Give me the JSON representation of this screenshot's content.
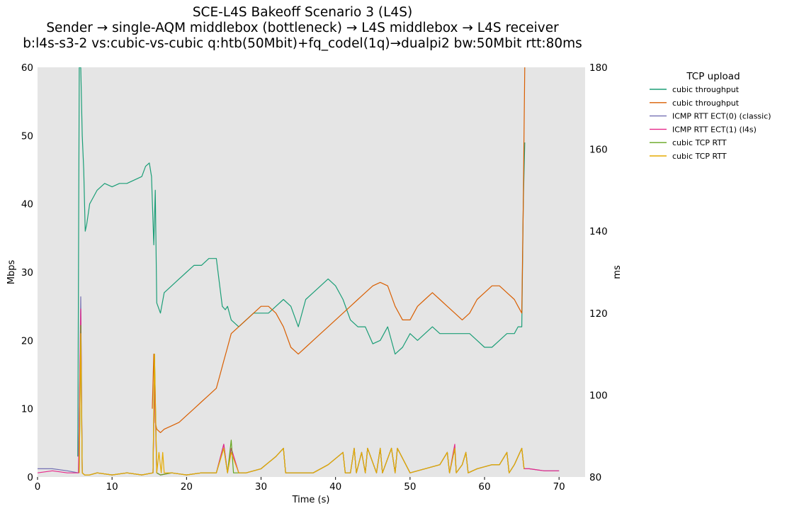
{
  "chart_data": {
    "type": "line",
    "title": "SCE-L4S Bakeoff Scenario 3 (L4S)",
    "subtitle": "Sender → single-AQM middlebox (bottleneck) → L4S middlebox → L4S receiver",
    "subtitle2": "b:l4s-s3-2 vs:cubic-vs-cubic q:htb(50Mbit)+fq_codel(1q)→dualpi2 bw:50Mbit rtt:80ms",
    "xlabel": "Time (s)",
    "ylabel": "Mbps",
    "y2label": "ms",
    "xlim": [
      0,
      73.5
    ],
    "ylim": [
      0,
      60
    ],
    "y2lim": [
      80,
      180
    ],
    "xticks": [
      0,
      10,
      20,
      30,
      40,
      50,
      60,
      70
    ],
    "yticks": [
      0,
      10,
      20,
      30,
      40,
      50,
      60
    ],
    "y2ticks": [
      80,
      100,
      120,
      140,
      160,
      180
    ],
    "grid": false,
    "background": "#e5e5e5",
    "legend": {
      "title": "TCP upload",
      "placement": "outside-top-right"
    },
    "series": [
      {
        "name": "cubic throughput",
        "axis": "left",
        "color": "#1b9e77",
        "x": [
          5.4,
          5.6,
          5.8,
          6.0,
          6.2,
          6.4,
          6.6,
          7.0,
          7.5,
          8.0,
          9.0,
          10.0,
          11.0,
          12.0,
          13.0,
          14.0,
          14.5,
          15.0,
          15.3,
          15.6,
          15.8,
          16.0,
          16.5,
          17.0,
          18.0,
          19.0,
          20.0,
          21.0,
          22.0,
          23.0,
          24.0,
          24.8,
          25.2,
          25.5,
          26.0,
          27.0,
          28.0,
          29.0,
          30.0,
          31.0,
          32.0,
          33.0,
          34.0,
          35.0,
          36.0,
          37.0,
          38.0,
          39.0,
          40.0,
          41.0,
          42.0,
          43.0,
          44.0,
          45.0,
          46.0,
          47.0,
          48.0,
          49.0,
          50.0,
          51.0,
          52.0,
          53.0,
          54.0,
          55.0,
          56.0,
          57.0,
          58.0,
          59.0,
          60.0,
          61.0,
          62.0,
          63.0,
          64.0,
          64.5,
          65.0,
          65.2,
          65.4
        ],
        "y": [
          3,
          60,
          60,
          50,
          45,
          36,
          37,
          40,
          41,
          42,
          43,
          42.5,
          43,
          43,
          43.5,
          44,
          45.5,
          46,
          44,
          34,
          42,
          25.5,
          24,
          27,
          28,
          29,
          30,
          31,
          31,
          32,
          32,
          25,
          24.5,
          25,
          23,
          22,
          23,
          24,
          24,
          24,
          25,
          26,
          25,
          22,
          26,
          27,
          28,
          29,
          28,
          26,
          23,
          22,
          22,
          19.5,
          20,
          22,
          18,
          19,
          21,
          20,
          21,
          22,
          21,
          21,
          21,
          21,
          21,
          20,
          19,
          19,
          20,
          21,
          21,
          22,
          22,
          40,
          49
        ]
      },
      {
        "name": "cubic throughput",
        "axis": "left",
        "color": "#d95f02",
        "x": [
          15.4,
          15.6,
          15.8,
          16.0,
          16.5,
          17.0,
          18.0,
          19.0,
          20.0,
          21.0,
          22.0,
          23.0,
          24.0,
          24.5,
          25.0,
          25.5,
          26.0,
          27.0,
          28.0,
          29.0,
          30.0,
          31.0,
          32.0,
          33.0,
          34.0,
          35.0,
          36.0,
          37.0,
          38.0,
          39.0,
          40.0,
          41.0,
          42.0,
          43.0,
          44.0,
          45.0,
          46.0,
          47.0,
          48.0,
          49.0,
          50.0,
          51.0,
          52.0,
          53.0,
          54.0,
          55.0,
          56.0,
          57.0,
          58.0,
          59.0,
          60.0,
          61.0,
          62.0,
          63.0,
          64.0,
          64.5,
          65.0,
          65.2,
          65.4
        ],
        "y": [
          10,
          18,
          8,
          7,
          6.5,
          7,
          7.5,
          8,
          9,
          10,
          11,
          12,
          13,
          15,
          17,
          19,
          21,
          22,
          23,
          24,
          25,
          25,
          24,
          22,
          19,
          18,
          19,
          20,
          21,
          22,
          23,
          24,
          25,
          26,
          27,
          28,
          28.5,
          28,
          25,
          23,
          23,
          25,
          26,
          27,
          26,
          25,
          24,
          23,
          24,
          26,
          27,
          28,
          28,
          27,
          26,
          25,
          24,
          40,
          60
        ]
      },
      {
        "name": "ICMP RTT ECT(0) (classic)",
        "axis": "right",
        "color": "#7570b3",
        "x": [
          0,
          2,
          4,
          5.5,
          5.8,
          6.0,
          6.3,
          7,
          8,
          10,
          12,
          14,
          15.5,
          15.7,
          16.0,
          16.5,
          18,
          20,
          22,
          24,
          25,
          25.5,
          26,
          27,
          28,
          30,
          32,
          33,
          33.3,
          35,
          37,
          39,
          41,
          41.3,
          42,
          42.5,
          42.8,
          43.5,
          44,
          44.3,
          45.5,
          46,
          46.3,
          47.5,
          48,
          48.3,
          50,
          52,
          54,
          55,
          55.3,
          56,
          56.2,
          57,
          57.5,
          57.8,
          59,
          61,
          62,
          63,
          63.3,
          64,
          65,
          65.3,
          66,
          68,
          70
        ],
        "y": [
          82,
          82,
          81.5,
          81,
          124,
          81,
          80.5,
          80.5,
          81,
          80.5,
          81,
          80.5,
          81,
          107,
          81,
          80.5,
          81,
          80.5,
          81,
          81,
          88,
          81,
          87,
          81,
          81,
          82,
          85,
          87,
          81,
          81,
          81,
          83,
          86,
          81,
          81,
          87,
          81,
          86,
          81,
          87,
          81,
          87,
          81,
          87,
          81,
          87,
          81,
          82,
          83,
          86,
          81,
          87,
          81,
          83,
          86,
          81,
          82,
          83,
          83,
          86,
          81,
          83,
          87,
          82,
          82,
          81.5,
          81.5
        ]
      },
      {
        "name": "ICMP RTT ECT(1) (l4s)",
        "axis": "right",
        "color": "#e7298a",
        "x": [
          0,
          2,
          4,
          5.5,
          5.8,
          6.0,
          6.3,
          7,
          8,
          10,
          12,
          14,
          15.5,
          15.7,
          16.0,
          16.5,
          18,
          20,
          22,
          24,
          25,
          25.5,
          26,
          27,
          28,
          30,
          32,
          33,
          33.3,
          35,
          37,
          39,
          41,
          41.3,
          42,
          42.5,
          42.8,
          43.5,
          44,
          44.3,
          45.5,
          46,
          46.3,
          47.5,
          48,
          48.3,
          50,
          52,
          54,
          55,
          55.3,
          56,
          56.2,
          57,
          57.5,
          57.8,
          59,
          61,
          62,
          63,
          63.3,
          64,
          65,
          65.3,
          66,
          68,
          70
        ],
        "y": [
          81,
          81.5,
          81,
          81,
          121,
          81,
          80.5,
          80.5,
          81,
          80.5,
          81,
          80.5,
          81,
          104,
          81,
          80.5,
          81,
          80.5,
          81,
          81,
          88,
          81,
          87,
          81,
          81,
          82,
          85,
          87,
          81,
          81,
          81,
          83,
          86,
          81,
          81,
          87,
          81,
          86,
          81,
          87,
          81,
          87,
          81,
          87,
          81,
          87,
          81,
          82,
          83,
          86,
          81,
          88,
          81,
          83,
          86,
          81,
          82,
          83,
          83,
          86,
          81,
          83,
          87,
          82,
          82,
          81.5,
          81.5
        ]
      },
      {
        "name": "cubic TCP RTT",
        "axis": "right",
        "color": "#66a61e",
        "x": [
          5.6,
          5.8,
          6.0,
          6.3,
          7,
          8,
          10,
          12,
          14,
          15.5,
          15.7,
          16.0,
          16.5,
          18,
          20,
          22,
          24,
          25,
          25.5,
          26,
          26.3,
          27,
          28,
          30,
          32,
          33,
          33.3,
          35,
          37,
          39,
          41,
          41.3,
          42,
          42.5,
          42.8,
          43.5,
          44,
          44.3,
          45.5,
          46,
          46.3,
          47.5,
          48,
          48.3,
          50,
          52,
          54,
          55,
          55.3,
          56,
          56.2,
          57,
          57.5,
          57.8,
          59,
          61,
          62,
          63,
          63.3,
          64,
          65,
          65.3
        ],
        "y": [
          81,
          117,
          81,
          80.5,
          80.5,
          81,
          80.5,
          81,
          80.5,
          81,
          110,
          81,
          80.5,
          81,
          80.5,
          81,
          81,
          87,
          81,
          89,
          81,
          81,
          81,
          82,
          85,
          87,
          81,
          81,
          81,
          83,
          86,
          81,
          81,
          87,
          81,
          86,
          81,
          87,
          81,
          87,
          81,
          87,
          81,
          87,
          81,
          82,
          83,
          86,
          81,
          87,
          81,
          83,
          86,
          81,
          82,
          83,
          83,
          86,
          81,
          83,
          87,
          82
        ]
      },
      {
        "name": "cubic TCP RTT",
        "axis": "right",
        "color": "#e6ab02",
        "x": [
          5.6,
          5.8,
          6.0,
          6.3,
          7,
          8,
          10,
          12,
          14,
          15.5,
          15.7,
          16.0,
          16.3,
          16.6,
          16.8,
          17.0,
          18,
          20,
          22,
          24,
          25,
          25.5,
          26,
          27,
          28,
          30,
          32,
          33,
          33.3,
          35,
          37,
          39,
          41,
          41.3,
          42,
          42.5,
          42.8,
          43.5,
          44,
          44.3,
          45.5,
          46,
          46.3,
          47.5,
          48,
          48.3,
          50,
          52,
          54,
          55,
          55.3,
          56,
          56.2,
          57,
          57.5,
          57.8,
          59,
          61,
          62,
          63,
          63.3,
          64,
          65,
          65.3
        ],
        "y": [
          81,
          115,
          81,
          80.5,
          80.5,
          81,
          80.5,
          81,
          80.5,
          81,
          110,
          81,
          86,
          81,
          86,
          81,
          81,
          80.5,
          81,
          81,
          87,
          81,
          86,
          81,
          81,
          82,
          85,
          87,
          81,
          81,
          81,
          83,
          86,
          81,
          81,
          87,
          81,
          86,
          81,
          87,
          81,
          87,
          81,
          87,
          81,
          87,
          81,
          82,
          83,
          86,
          81,
          87,
          81,
          83,
          86,
          81,
          82,
          83,
          83,
          86,
          81,
          83,
          87,
          82
        ]
      }
    ]
  }
}
